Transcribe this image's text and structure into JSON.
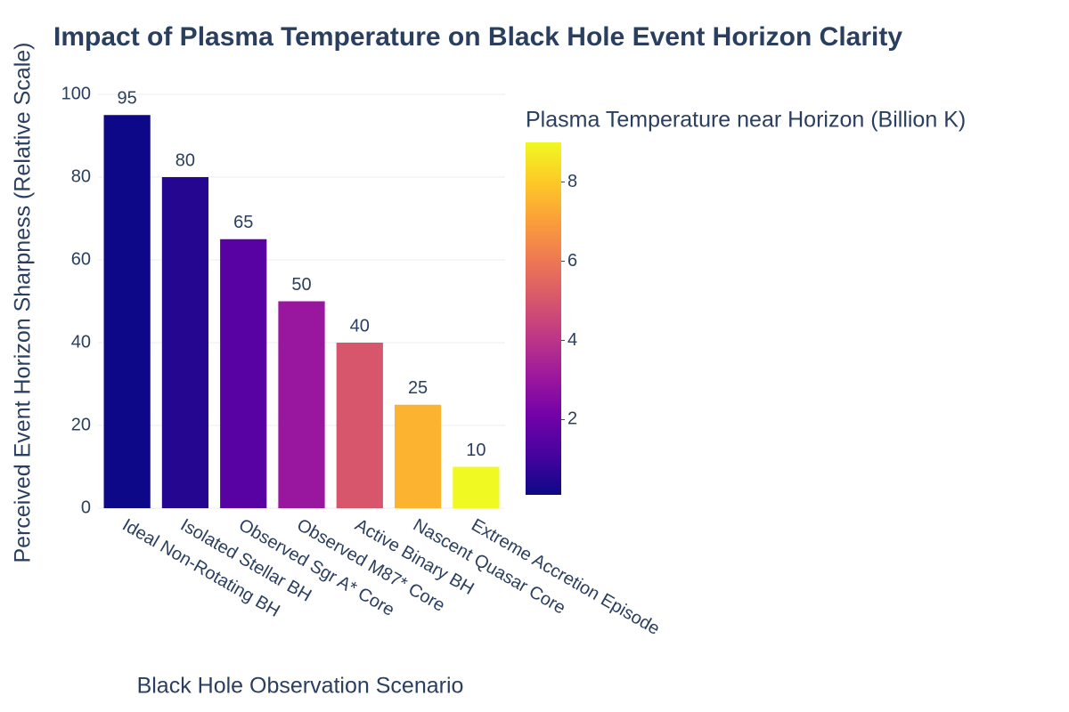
{
  "chart_data": {
    "type": "bar",
    "title": "Impact of Plasma Temperature on Black Hole Event Horizon Clarity",
    "xlabel": "Black Hole Observation Scenario",
    "ylabel": "Perceived Event Horizon Sharpness (Relative Scale)",
    "categories": [
      "Ideal Non-Rotating BH",
      "Isolated Stellar BH",
      "Observed Sgr A* Core",
      "Observed M87* Core",
      "Active Binary BH",
      "Nascent Quasar Core",
      "Extreme Accretion Episode"
    ],
    "values": [
      95,
      80,
      65,
      50,
      40,
      25,
      10
    ],
    "color_values": [
      0.1,
      0.5,
      1.5,
      3,
      5,
      7.5,
      9
    ],
    "colorbar_title": "Plasma Temperature near Horizon (Billion K)",
    "clim": [
      0.1,
      9
    ],
    "cticks": [
      2,
      4,
      6,
      8
    ],
    "colorscale": [
      "#0d0887",
      "#46039f",
      "#7201a8",
      "#9c179e",
      "#bd3786",
      "#d8576b",
      "#ed7953",
      "#fb9f3a",
      "#fdca26",
      "#f0f921"
    ],
    "ylim": [
      0,
      100
    ],
    "yticks": [
      0,
      20,
      40,
      60,
      80,
      100
    ],
    "grid": true
  }
}
